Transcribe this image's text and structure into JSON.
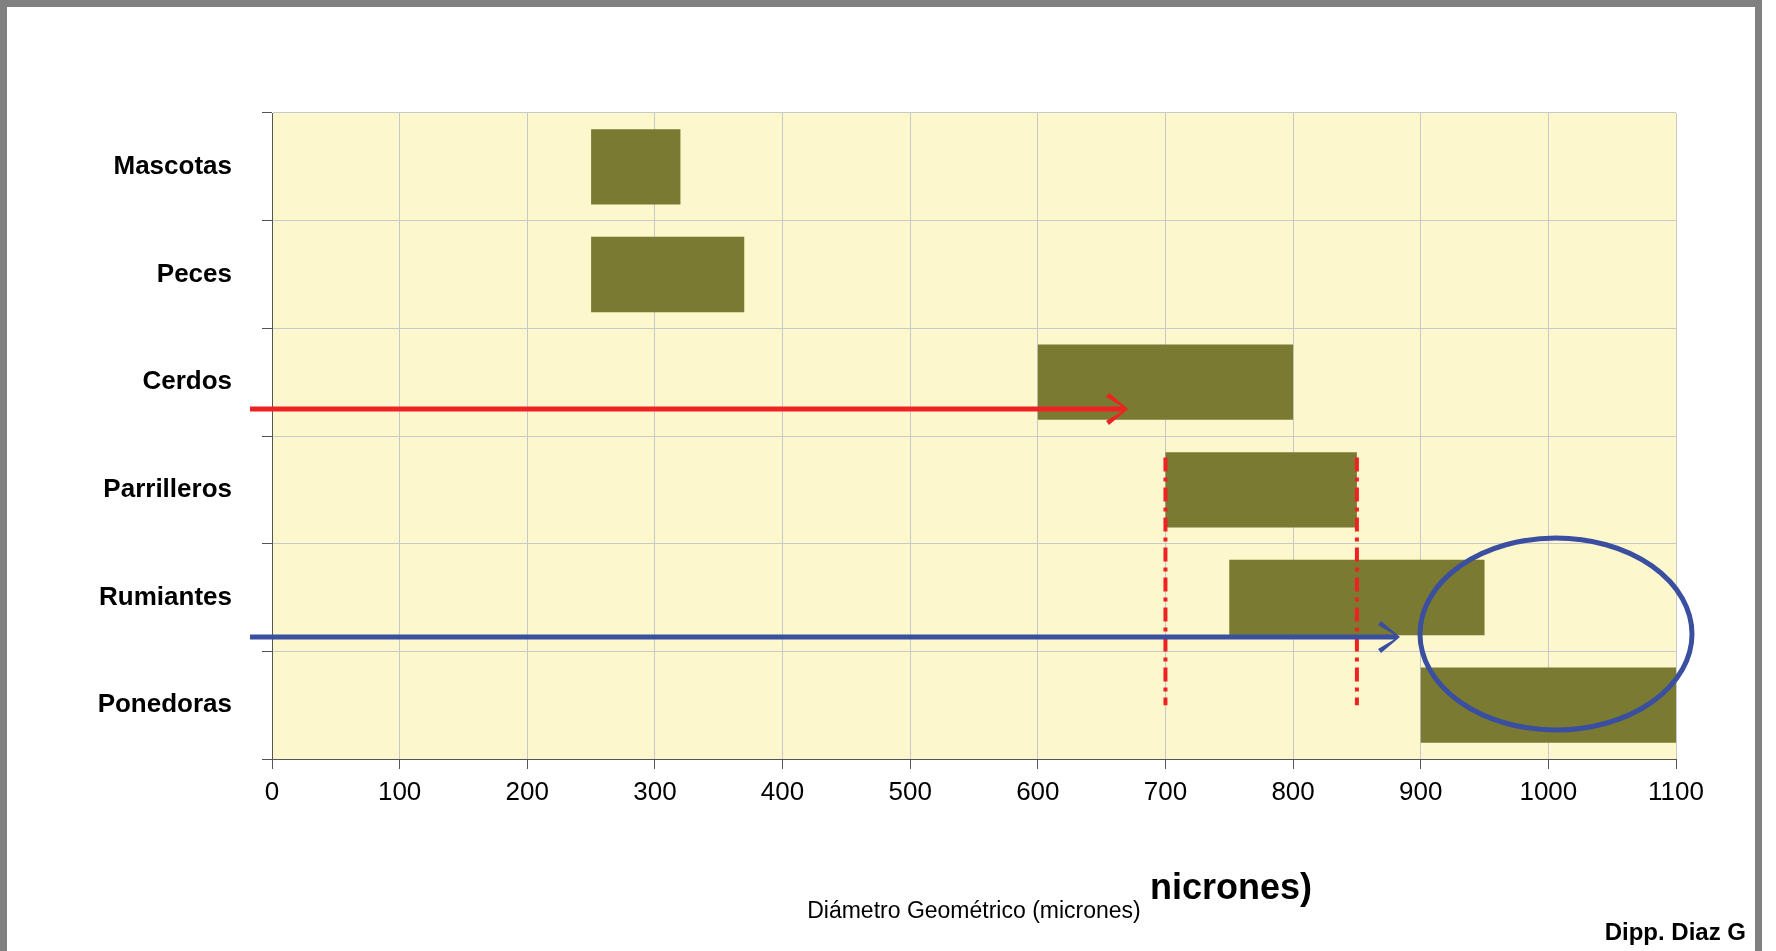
{
  "chart_data": {
    "type": "bar",
    "orientation": "horizontal",
    "xlabel": "Diámetro Geométrico (micrones)",
    "categories": [
      "Mascotas",
      "Peces",
      "Cerdos",
      "Parrilleros",
      "Rumiantes",
      "Ponedoras"
    ],
    "base": [
      250,
      250,
      600,
      700,
      750,
      900
    ],
    "values": [
      70,
      120,
      200,
      150,
      200,
      200
    ],
    "color": "#7a7a32",
    "xlim": [
      0,
      1100
    ],
    "xticks": [
      0,
      100,
      200,
      300,
      400,
      500,
      600,
      700,
      800,
      900,
      1000,
      1100
    ],
    "grid": true,
    "legend": false,
    "ref_lines": [
      {
        "axis": "x",
        "value": 700,
        "color": "#ee2222",
        "line_style": "dashed"
      },
      {
        "axis": "x",
        "value": 850,
        "color": "#ee2222",
        "line_style": "dashed"
      }
    ],
    "annotations": [
      "nicrones)",
      "Dipp. Diaz G"
    ]
  }
}
